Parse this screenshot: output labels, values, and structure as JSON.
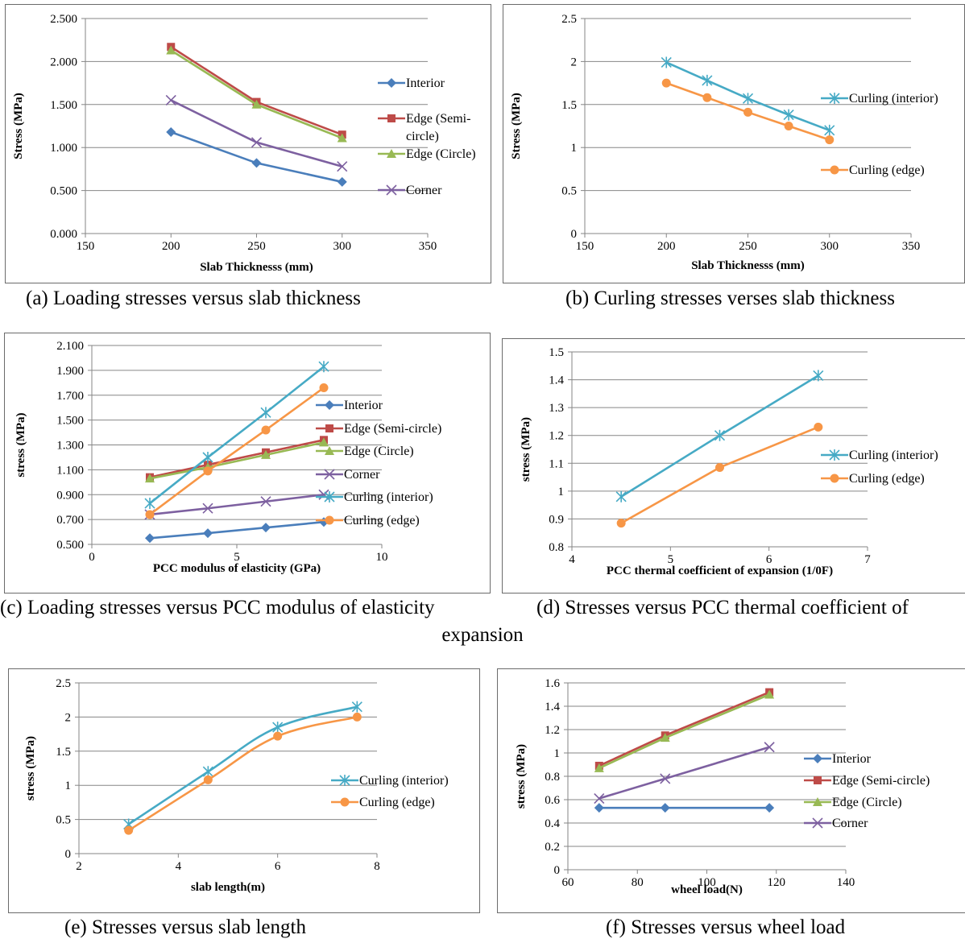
{
  "captions": {
    "a": "(a) Loading stresses versus slab thickness",
    "b": "(b) Curling stresses verses slab thickness",
    "c": "(c) Loading stresses versus PCC modulus of elasticity",
    "d": "(d) Stresses versus PCC thermal coefficient of expansion",
    "e": "(e) Stresses versus slab length",
    "f": "(f) Stresses versus wheel load"
  },
  "colors": {
    "interior": "#4a7ebb",
    "edge_semi": "#be4b48",
    "edge_circle": "#98b954",
    "corner": "#7d60a0",
    "curl_interior": "#46aac5",
    "curl_edge": "#f79646",
    "grid": "#868686",
    "axis": "#868686"
  },
  "chart_data": [
    {
      "id": "a",
      "type": "line",
      "xlabel": "Slab Thicknesss (mm)",
      "ylabel": "Stress (MPa)",
      "xlim": [
        150,
        350
      ],
      "ylim": [
        0,
        2.5
      ],
      "xticks": [
        150,
        200,
        250,
        300,
        350
      ],
      "yticks": [
        0,
        0.5,
        1,
        1.5,
        2,
        2.5
      ],
      "ytick_labels": [
        "0.000",
        "0.500",
        "1.000",
        "1.500",
        "2.000",
        "2.500"
      ],
      "grid": "horizontal",
      "legend": "right",
      "series": [
        {
          "name": "Interior",
          "marker": "diamond",
          "color": "#4a7ebb",
          "x": [
            200,
            250,
            300
          ],
          "y": [
            1.18,
            0.82,
            0.6
          ]
        },
        {
          "name": "Edge (Semi-circle)",
          "marker": "square",
          "color": "#be4b48",
          "x": [
            200,
            250,
            300
          ],
          "y": [
            2.17,
            1.53,
            1.15
          ]
        },
        {
          "name": "Edge (Circle)",
          "marker": "triangle",
          "color": "#98b954",
          "x": [
            200,
            250,
            300
          ],
          "y": [
            2.13,
            1.5,
            1.11
          ]
        },
        {
          "name": "Corner",
          "marker": "x",
          "color": "#7d60a0",
          "x": [
            200,
            250,
            300
          ],
          "y": [
            1.55,
            1.06,
            0.78
          ]
        }
      ]
    },
    {
      "id": "b",
      "type": "line",
      "xlabel": "Slab Thicknesss (mm)",
      "ylabel": "Stress (MPa)",
      "xlim": [
        150,
        350
      ],
      "ylim": [
        0,
        2.5
      ],
      "xticks": [
        150,
        200,
        250,
        300,
        350
      ],
      "yticks": [
        0,
        0.5,
        1,
        1.5,
        2,
        2.5
      ],
      "ytick_labels": [
        "0",
        "0.5",
        "1",
        "1.5",
        "2",
        "2.5"
      ],
      "grid": "horizontal",
      "legend": "right",
      "series": [
        {
          "name": "Curling (interior)",
          "marker": "asterisk",
          "color": "#46aac5",
          "x": [
            200,
            225,
            250,
            275,
            300
          ],
          "y": [
            1.99,
            1.78,
            1.57,
            1.38,
            1.2
          ]
        },
        {
          "name": "Curling (edge)",
          "marker": "circle",
          "color": "#f79646",
          "x": [
            200,
            225,
            250,
            275,
            300
          ],
          "y": [
            1.75,
            1.58,
            1.41,
            1.25,
            1.09
          ]
        }
      ]
    },
    {
      "id": "c",
      "type": "line",
      "xlabel": "PCC modulus of elasticity (GPa)",
      "ylabel": "stress (MPa)",
      "xlim": [
        0,
        10
      ],
      "ylim": [
        0.5,
        2.1
      ],
      "xticks": [
        0,
        5,
        10
      ],
      "yticks": [
        0.5,
        0.7,
        0.9,
        1.1,
        1.3,
        1.5,
        1.7,
        1.9,
        2.1
      ],
      "ytick_labels": [
        "0.500",
        "0.700",
        "0.900",
        "1.100",
        "1.300",
        "1.500",
        "1.700",
        "1.900",
        "2.100"
      ],
      "grid": "horizontal",
      "legend": "right",
      "series": [
        {
          "name": "Interior",
          "marker": "diamond",
          "color": "#4a7ebb",
          "x": [
            2,
            4,
            6,
            8
          ],
          "y": [
            0.55,
            0.59,
            0.635,
            0.68
          ]
        },
        {
          "name": "Edge (Semi-circle)",
          "marker": "square",
          "color": "#be4b48",
          "x": [
            2,
            4,
            6,
            8
          ],
          "y": [
            1.04,
            1.14,
            1.24,
            1.34
          ]
        },
        {
          "name": "Edge (Circle)",
          "marker": "triangle",
          "color": "#98b954",
          "x": [
            2,
            4,
            6,
            8
          ],
          "y": [
            1.03,
            1.12,
            1.22,
            1.32
          ]
        },
        {
          "name": "Corner",
          "marker": "x",
          "color": "#7d60a0",
          "x": [
            2,
            4,
            6,
            8
          ],
          "y": [
            0.74,
            0.79,
            0.845,
            0.9
          ]
        },
        {
          "name": "Curling (interior)",
          "marker": "asterisk",
          "color": "#46aac5",
          "x": [
            2,
            4,
            6,
            8
          ],
          "y": [
            0.83,
            1.2,
            1.56,
            1.93
          ]
        },
        {
          "name": "Curling (edge)",
          "marker": "circle",
          "color": "#f79646",
          "x": [
            2,
            4,
            6,
            8
          ],
          "y": [
            0.74,
            1.09,
            1.42,
            1.76
          ]
        }
      ]
    },
    {
      "id": "d",
      "type": "line",
      "xlabel": "PCC thermal coefficient of expansion (1/0F)",
      "ylabel": "stress (MPa)",
      "xlim": [
        4,
        7
      ],
      "ylim": [
        0.8,
        1.5
      ],
      "xticks": [
        4,
        5,
        6,
        7
      ],
      "yticks": [
        0.8,
        0.9,
        1,
        1.1,
        1.2,
        1.3,
        1.4,
        1.5
      ],
      "ytick_labels": [
        "0.8",
        "0.9",
        "1",
        "1.1",
        "1.2",
        "1.3",
        "1.4",
        "1.5"
      ],
      "grid": "horizontal",
      "legend": "right",
      "series": [
        {
          "name": "Curling (interior)",
          "marker": "asterisk",
          "color": "#46aac5",
          "x": [
            4.5,
            5.5,
            6.5
          ],
          "y": [
            0.98,
            1.2,
            1.415
          ]
        },
        {
          "name": "Curling (edge)",
          "marker": "circle",
          "color": "#f79646",
          "x": [
            4.5,
            5.5,
            6.5
          ],
          "y": [
            0.885,
            1.085,
            1.23
          ]
        }
      ]
    },
    {
      "id": "e",
      "type": "line",
      "xlabel": "slab length(m)",
      "ylabel": "stress (MPa)",
      "xlim": [
        2,
        8
      ],
      "ylim": [
        0,
        2.5
      ],
      "xticks": [
        2,
        4,
        6,
        8
      ],
      "yticks": [
        0,
        0.5,
        1,
        1.5,
        2,
        2.5
      ],
      "ytick_labels": [
        "0",
        "0.5",
        "1",
        "1.5",
        "2",
        "2.5"
      ],
      "grid": "horizontal",
      "legend": "right",
      "series": [
        {
          "name": "Curling (interior)",
          "marker": "asterisk",
          "color": "#46aac5",
          "x": [
            3,
            4.6,
            6,
            7.6
          ],
          "y": [
            0.43,
            1.2,
            1.85,
            2.15
          ]
        },
        {
          "name": "Curling (edge)",
          "marker": "circle",
          "color": "#f79646",
          "x": [
            3,
            4.6,
            6,
            7.6
          ],
          "y": [
            0.34,
            1.08,
            1.72,
            2.0
          ]
        }
      ]
    },
    {
      "id": "f",
      "type": "line",
      "xlabel": "wheel load(N)",
      "ylabel": "stress (MPa)",
      "xlim": [
        60,
        140
      ],
      "ylim": [
        0,
        1.6
      ],
      "xticks": [
        60,
        80,
        100,
        120,
        140
      ],
      "yticks": [
        0,
        0.2,
        0.4,
        0.6,
        0.8,
        1,
        1.2,
        1.4,
        1.6
      ],
      "ytick_labels": [
        "0",
        "0.2",
        "0.4",
        "0.6",
        "0.8",
        "1",
        "1.2",
        "1.4",
        "1.6"
      ],
      "grid": "horizontal",
      "legend": "right",
      "series": [
        {
          "name": "Interior",
          "marker": "diamond",
          "color": "#4a7ebb",
          "x": [
            69,
            88,
            118
          ],
          "y": [
            0.53,
            0.53,
            0.53
          ]
        },
        {
          "name": "Edge (Semi-circle)",
          "marker": "square",
          "color": "#be4b48",
          "x": [
            69,
            88,
            118
          ],
          "y": [
            0.89,
            1.15,
            1.52
          ]
        },
        {
          "name": "Edge (Circle)",
          "marker": "triangle",
          "color": "#98b954",
          "x": [
            69,
            88,
            118
          ],
          "y": [
            0.87,
            1.13,
            1.5
          ]
        },
        {
          "name": "Corner",
          "marker": "x",
          "color": "#7d60a0",
          "x": [
            69,
            88,
            118
          ],
          "y": [
            0.61,
            0.78,
            1.05
          ]
        }
      ]
    }
  ]
}
